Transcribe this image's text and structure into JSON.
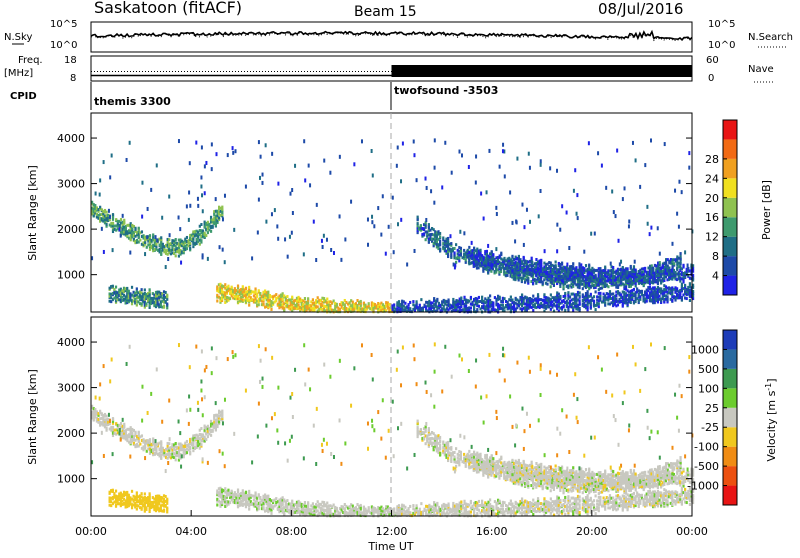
{
  "header": {
    "station": "Saskatoon (fitACF)",
    "beam": "Beam 15",
    "date": "08/Jul/2016"
  },
  "noise_panel": {
    "left_label": "N.Sky",
    "left_ticks": [
      "10^5",
      "10^0"
    ],
    "right_ticks": [
      "10^5",
      "10^0"
    ],
    "right_label": "N.Search"
  },
  "freq_panel": {
    "left_label_1": "Freq.",
    "left_label_2": "[MHz]",
    "left_ticks": [
      "18",
      "8"
    ],
    "right_ticks": [
      "60",
      "0"
    ],
    "right_label": "Nave",
    "freq_before_noon_mhz": 11,
    "nave_after_noon": 60
  },
  "cpid": {
    "label": "CPID",
    "programs": [
      {
        "name": "themis 3300",
        "start_hour": 0
      },
      {
        "name": "twofsound -3503",
        "start_hour": 12
      }
    ]
  },
  "chart_data": {
    "type": "heatmap",
    "x": {
      "label": "Time UT",
      "range_hours": [
        0,
        24
      ],
      "ticks": [
        "00:00",
        "04:00",
        "08:00",
        "12:00",
        "16:00",
        "20:00",
        "00:00"
      ],
      "tick_hours": [
        0,
        4,
        8,
        12,
        16,
        20,
        24
      ]
    },
    "y": {
      "label": "Slant Range [km]",
      "range_km": [
        180,
        4550
      ],
      "ticks": [
        1000,
        2000,
        3000,
        4000
      ]
    },
    "vertical_marker_hour": 12,
    "power": {
      "colorbar_label": "Power [dB]",
      "ticks": [
        "4",
        "8",
        "12",
        "16",
        "20",
        "24",
        "28"
      ],
      "colors": [
        "#1f22e6",
        "#1d4aa8",
        "#1f6e86",
        "#3e9a6e",
        "#8fc250",
        "#f0e020",
        "#f0a020",
        "#f26a14",
        "#e81414"
      ]
    },
    "velocity": {
      "colorbar_label": "Velocity [m s^-1]",
      "ticks": [
        "1000",
        "500",
        "100",
        "25",
        "-25",
        "-100",
        "-500",
        "-1000"
      ],
      "colors": [
        "#1d3cb8",
        "#2a6aa0",
        "#3d9a50",
        "#6ccc2e",
        "#c8c8c0",
        "#f0c81e",
        "#f08c14",
        "#ec5010",
        "#e81414"
      ]
    },
    "echo_bands": [
      {
        "name": "early band",
        "start_hour": 0.0,
        "end_hour": 5.2,
        "range_km": [
          2450,
          2150,
          1900,
          1650,
          1600,
          1900,
          2400
        ],
        "power": 14,
        "velocity": 0
      },
      {
        "name": "near band",
        "start_hour": 0.7,
        "end_hour": 3.0,
        "range_km": [
          600,
          520,
          450
        ],
        "power": 12,
        "velocity": -60
      },
      {
        "name": "mid band",
        "start_hour": 5.0,
        "end_hour": 12.0,
        "range_km": [
          620,
          560,
          440,
          330,
          280,
          250,
          240
        ],
        "power": 22,
        "velocity": 5
      },
      {
        "name": "afternoon upper band",
        "start_hour": 13.0,
        "end_hour": 23.5,
        "range_km": [
          2100,
          1500,
          1200,
          1000,
          900,
          880,
          950,
          1300
        ],
        "power": 9,
        "velocity": 0
      },
      {
        "name": "afternoon middle band",
        "start_hour": 15.0,
        "end_hour": 24.0,
        "range_km": [
          1450,
          1250,
          1100,
          1000,
          1000,
          1050
        ],
        "power": 6,
        "velocity": 0
      },
      {
        "name": "afternoon low band",
        "start_hour": 12.0,
        "end_hour": 24.0,
        "range_km": [
          250,
          300,
          350,
          400,
          450,
          550,
          650
        ],
        "power": 6,
        "velocity": 0
      }
    ]
  }
}
